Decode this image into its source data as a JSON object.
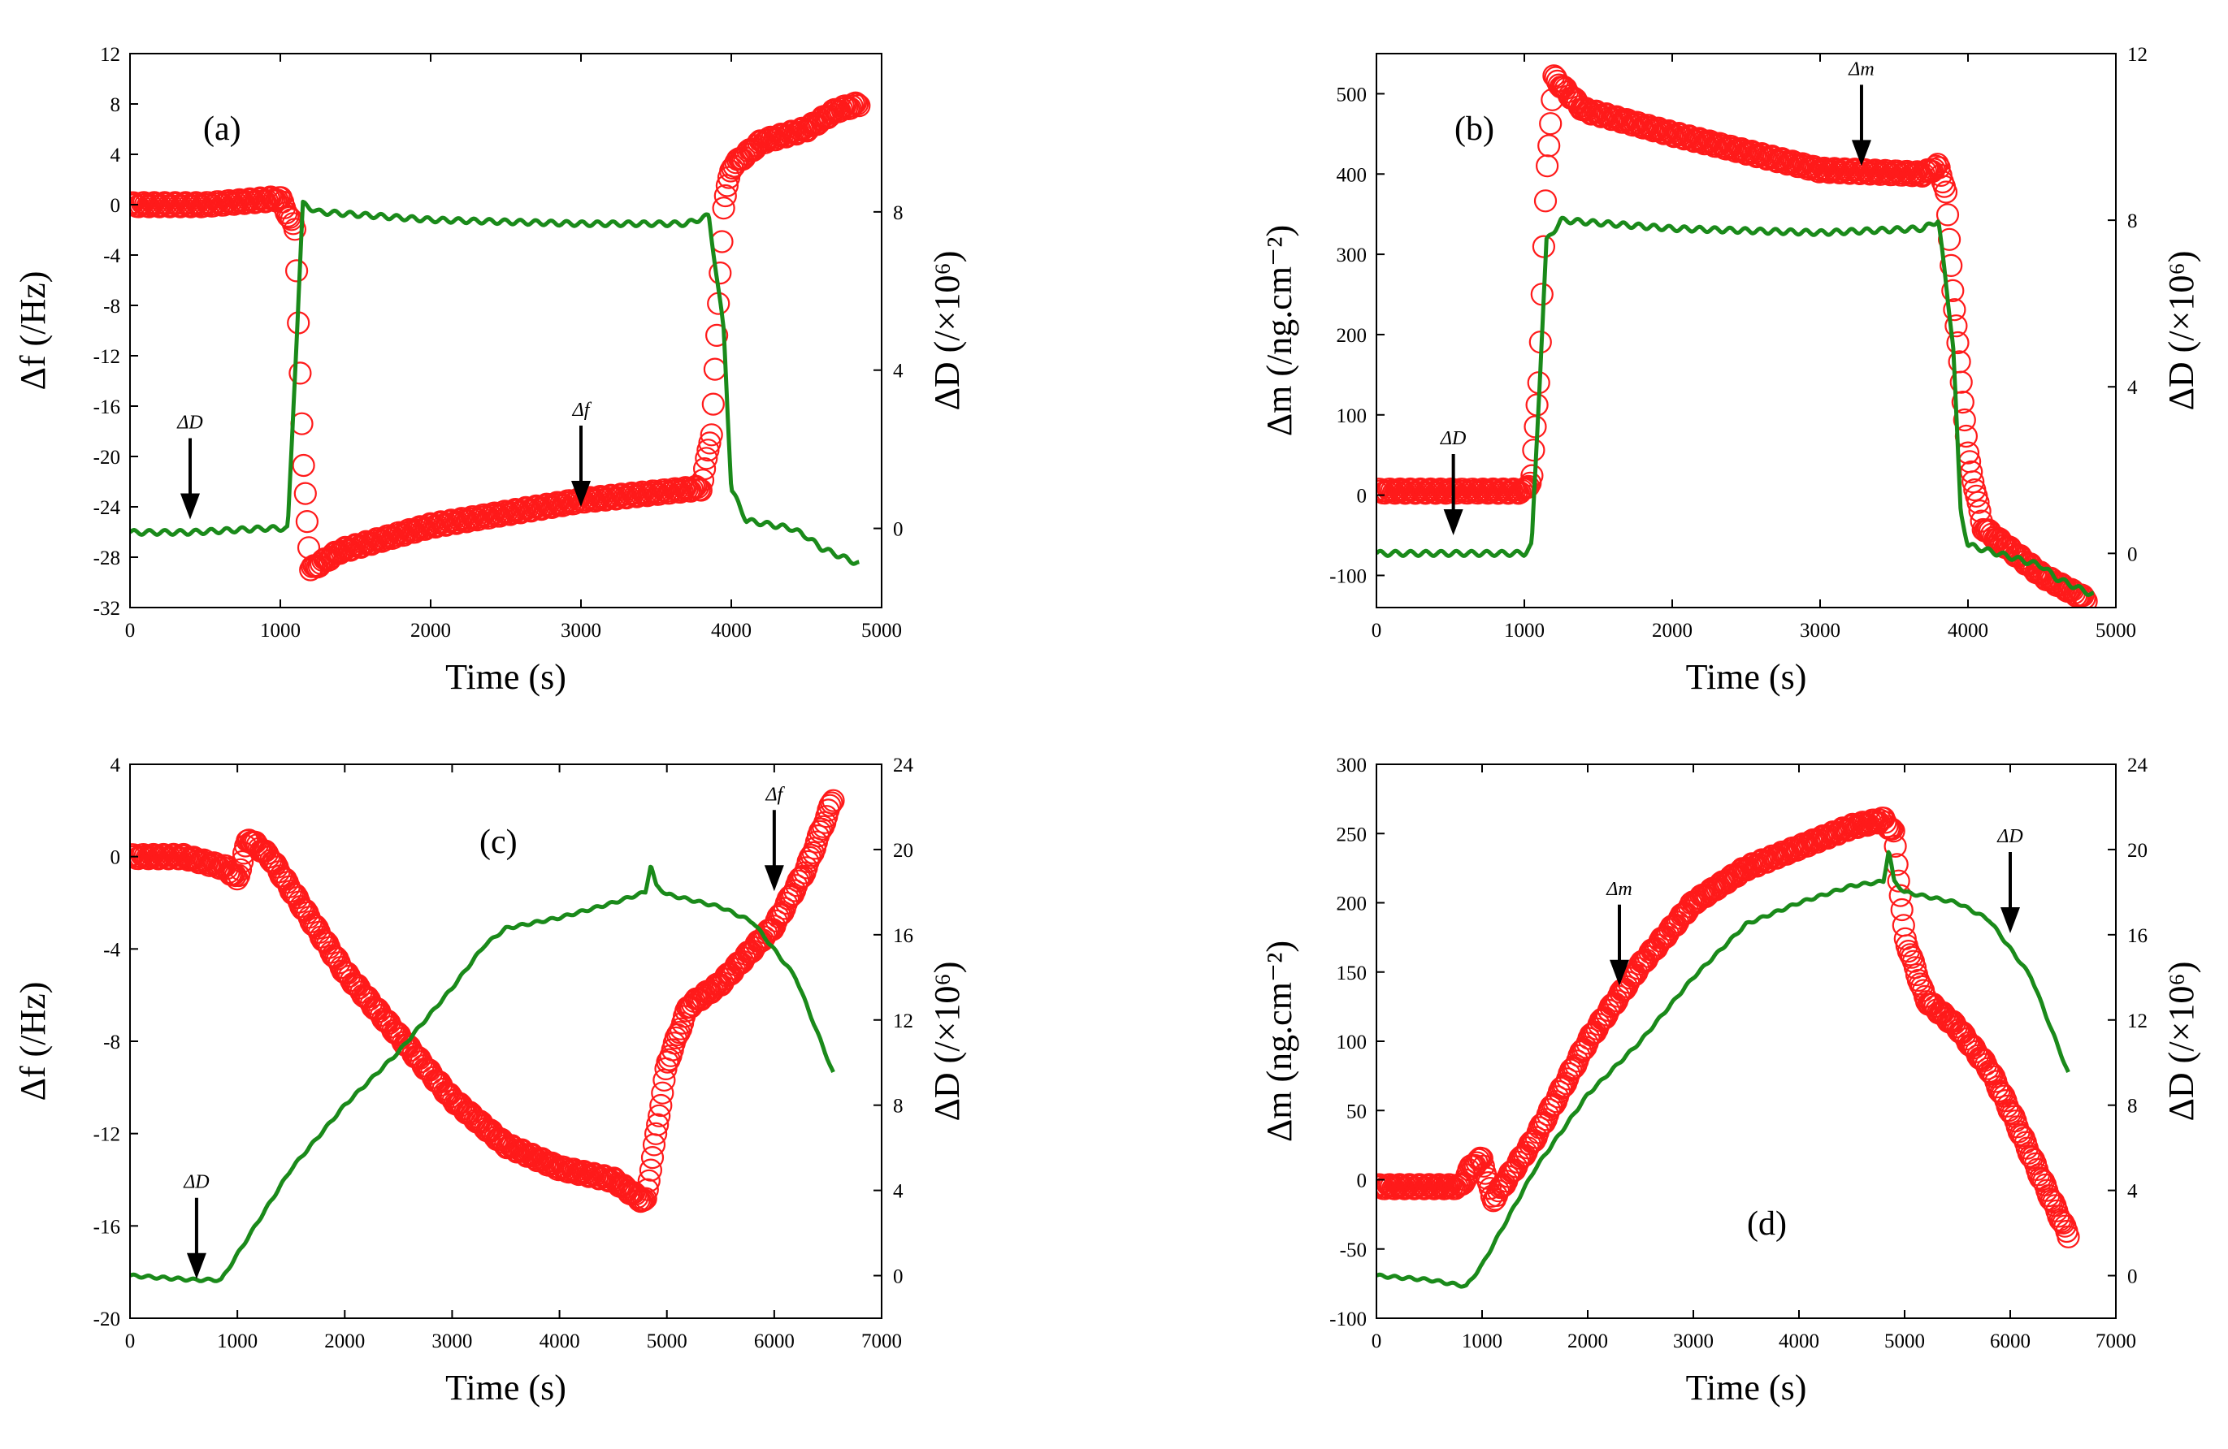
{
  "colors": {
    "frequency": "#ff1a1a",
    "mass": "#ff1a1a",
    "dissipation": "#1a8a1a"
  },
  "chart_data": [
    {
      "id": "a",
      "type": "line",
      "label": "(a)",
      "xlabel": "Time (s)",
      "y_left_label": "Δf (/Hz)",
      "y_right_label": "ΔD (/×10⁶)",
      "xlim": [
        0,
        5000
      ],
      "xticks": [
        0,
        1000,
        2000,
        3000,
        4000,
        5000
      ],
      "y_left_lim": [
        -32,
        12
      ],
      "y_left_ticks": [
        -32,
        -28,
        -24,
        -20,
        -16,
        -12,
        -8,
        -4,
        0,
        4,
        8,
        12
      ],
      "y_right_lim": [
        -2,
        12
      ],
      "y_right_ticks": [
        0,
        4,
        8
      ],
      "series": [
        {
          "name": "Δf",
          "axis": "left",
          "style": "circles",
          "color": "#ff1a1a",
          "x": [
            0,
            500,
            1000,
            1100,
            1150,
            1200,
            1400,
            2000,
            3000,
            3800,
            3870,
            3950,
            4000,
            4200,
            4500,
            4700,
            4850
          ],
          "y": [
            0,
            0,
            0.5,
            -2,
            -20,
            -29,
            -27.5,
            -25.5,
            -23.5,
            -22.5,
            -18,
            0,
            3,
            5,
            6,
            7.5,
            8
          ]
        },
        {
          "name": "ΔD",
          "axis": "right",
          "style": "line",
          "color": "#1a8a1a",
          "x": [
            0,
            400,
            900,
            1050,
            1150,
            1250,
            2000,
            3000,
            3700,
            3850,
            3950,
            4000,
            4100,
            4400,
            4500,
            4600,
            4850
          ],
          "y": [
            -0.1,
            -0.1,
            0,
            0,
            8.2,
            8.0,
            7.8,
            7.7,
            7.7,
            7.9,
            5,
            1,
            0.2,
            0,
            -0.2,
            -0.5,
            -0.9
          ]
        }
      ],
      "annotations": [
        {
          "text": "ΔD",
          "x": 400,
          "y_left": -25
        },
        {
          "text": "Δf",
          "x": 3000,
          "y_left": -24
        }
      ]
    },
    {
      "id": "b",
      "type": "line",
      "label": "(b)",
      "xlabel": "Time (s)",
      "y_left_label": "Δm (/ng.cm⁻²)",
      "y_right_label": "ΔD (/×10⁶)",
      "xlim": [
        0,
        5000
      ],
      "xticks": [
        0,
        1000,
        2000,
        3000,
        4000,
        5000
      ],
      "y_left_lim": [
        -140,
        550
      ],
      "y_left_ticks": [
        -100,
        0,
        100,
        200,
        300,
        400,
        500
      ],
      "y_right_lim": [
        -1.3,
        12
      ],
      "y_right_ticks": [
        0,
        4,
        8,
        12
      ],
      "series": [
        {
          "name": "Δm",
          "axis": "left",
          "style": "circles",
          "color": "#ff1a1a",
          "x": [
            0,
            500,
            1000,
            1050,
            1100,
            1150,
            1200,
            1400,
            2000,
            3000,
            3700,
            3800,
            3850,
            3900,
            4000,
            4100,
            4500,
            4800
          ],
          "y": [
            5,
            5,
            5,
            20,
            150,
            400,
            520,
            480,
            450,
            405,
            400,
            410,
            380,
            250,
            50,
            -40,
            -100,
            -130
          ]
        },
        {
          "name": "ΔD",
          "axis": "right",
          "style": "line",
          "color": "#1a8a1a",
          "x": [
            0,
            500,
            1000,
            1050,
            1150,
            1250,
            2000,
            3000,
            3700,
            3800,
            3900,
            3950,
            4000,
            4400,
            4500,
            4600,
            4850
          ],
          "y": [
            0,
            0,
            0,
            0.2,
            7.5,
            8.0,
            7.8,
            7.7,
            7.8,
            8.0,
            5,
            1,
            0.2,
            -0.2,
            -0.3,
            -0.6,
            -1.0
          ]
        }
      ],
      "annotations": [
        {
          "text": "ΔD",
          "x": 520,
          "y_left": -50
        },
        {
          "text": "Δm",
          "x": 3280,
          "y_left": 410
        }
      ]
    },
    {
      "id": "c",
      "type": "line",
      "label": "(c)",
      "xlabel": "Time (s)",
      "y_left_label": "Δf (/Hz)",
      "y_right_label": "ΔD (/×10⁶)",
      "xlim": [
        0,
        7000
      ],
      "xticks": [
        0,
        1000,
        2000,
        3000,
        4000,
        5000,
        6000,
        7000
      ],
      "y_left_lim": [
        -20,
        4
      ],
      "y_left_ticks": [
        -20,
        -16,
        -12,
        -8,
        -4,
        0,
        4
      ],
      "y_right_lim": [
        -2,
        24
      ],
      "y_right_ticks": [
        0,
        4,
        8,
        12,
        16,
        20,
        24
      ],
      "series": [
        {
          "name": "Δf",
          "axis": "left",
          "style": "circles",
          "color": "#ff1a1a",
          "x": [
            0,
            500,
            900,
            1000,
            1100,
            1300,
            2000,
            3000,
            3500,
            4000,
            4500,
            4800,
            4900,
            5000,
            5200,
            5500,
            6000,
            6300,
            6550
          ],
          "y": [
            0,
            0,
            -0.5,
            -1,
            0.8,
            0,
            -5,
            -10.5,
            -12.5,
            -13.5,
            -14,
            -15,
            -12,
            -9,
            -6.5,
            -5.5,
            -3,
            -0.5,
            2.5
          ]
        },
        {
          "name": "ΔD",
          "axis": "right",
          "style": "line",
          "color": "#1a8a1a",
          "x": [
            0,
            600,
            850,
            1000,
            1500,
            2000,
            2500,
            3000,
            3300,
            3500,
            4000,
            4500,
            4800,
            4850,
            4900,
            5000,
            5500,
            5800,
            6200,
            6550
          ],
          "y": [
            0,
            -0.2,
            -0.2,
            1,
            5,
            8,
            10.5,
            13.5,
            15.5,
            16.3,
            16.8,
            17.5,
            18,
            19.3,
            18.3,
            17.9,
            17.3,
            16.6,
            14,
            9.5
          ]
        }
      ],
      "annotations": [
        {
          "text": "ΔD",
          "x": 620,
          "y_left": -18.3
        },
        {
          "text": "Δf",
          "x": 6000,
          "y_left": -1.5
        }
      ]
    },
    {
      "id": "d",
      "type": "line",
      "label": "(d)",
      "xlabel": "Time (s)",
      "y_left_label": "Δm (ng.cm⁻²)",
      "y_right_label": "ΔD (/×10⁶)",
      "xlim": [
        0,
        7000
      ],
      "xticks": [
        0,
        1000,
        2000,
        3000,
        4000,
        5000,
        6000,
        7000
      ],
      "y_left_lim": [
        -100,
        300
      ],
      "y_left_ticks": [
        -100,
        -50,
        0,
        50,
        100,
        150,
        200,
        250,
        300
      ],
      "y_right_lim": [
        -2,
        24
      ],
      "y_right_ticks": [
        0,
        4,
        8,
        12,
        16,
        20,
        24
      ],
      "series": [
        {
          "name": "Δm",
          "axis": "left",
          "style": "circles",
          "color": "#ff1a1a",
          "x": [
            0,
            500,
            800,
            900,
            1000,
            1100,
            1500,
            2000,
            2500,
            3000,
            3500,
            4000,
            4500,
            4800,
            4900,
            5000,
            5200,
            5500,
            5800,
            6000,
            6300,
            6550
          ],
          "y": [
            -5,
            -5,
            -5,
            10,
            15,
            -15,
            30,
            100,
            155,
            200,
            225,
            240,
            255,
            260,
            250,
            175,
            130,
            110,
            80,
            50,
            0,
            -40
          ]
        },
        {
          "name": "ΔD",
          "axis": "right",
          "style": "line",
          "color": "#1a8a1a",
          "x": [
            0,
            500,
            850,
            1000,
            1500,
            2000,
            2500,
            3000,
            3500,
            4000,
            4500,
            4800,
            4850,
            4900,
            5000,
            5500,
            5800,
            6200,
            6550
          ],
          "y": [
            0,
            -0.2,
            -0.5,
            0.5,
            5,
            8.5,
            11,
            14,
            16.5,
            17.5,
            18.3,
            18.5,
            20,
            18.5,
            18,
            17.5,
            16.7,
            14,
            9.5
          ]
        }
      ],
      "annotations": [
        {
          "text": "Δm",
          "x": 2300,
          "y_left": 140
        },
        {
          "text": "ΔD",
          "x": 6000,
          "y_left": 178
        }
      ]
    }
  ]
}
